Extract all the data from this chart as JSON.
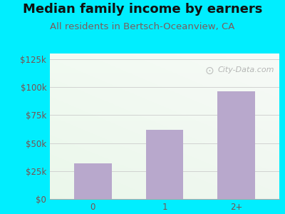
{
  "title": "Median family income by earners",
  "subtitle": "All residents in Bertsch-Oceanview, CA",
  "categories": [
    "0",
    "1",
    "2+"
  ],
  "values": [
    32000,
    62000,
    96000
  ],
  "bar_color": "#b8a8cc",
  "background_outer": "#00eeff",
  "title_color": "#111111",
  "subtitle_color": "#7a5c5c",
  "tick_color": "#7a5050",
  "ylim": [
    0,
    130000
  ],
  "yticks": [
    0,
    25000,
    50000,
    75000,
    100000,
    125000
  ],
  "ytick_labels": [
    "$0",
    "$25k",
    "$50k",
    "$75k",
    "$100k",
    "$125k"
  ],
  "watermark": "City-Data.com",
  "title_fontsize": 13,
  "subtitle_fontsize": 9.5,
  "tick_fontsize": 8.5
}
